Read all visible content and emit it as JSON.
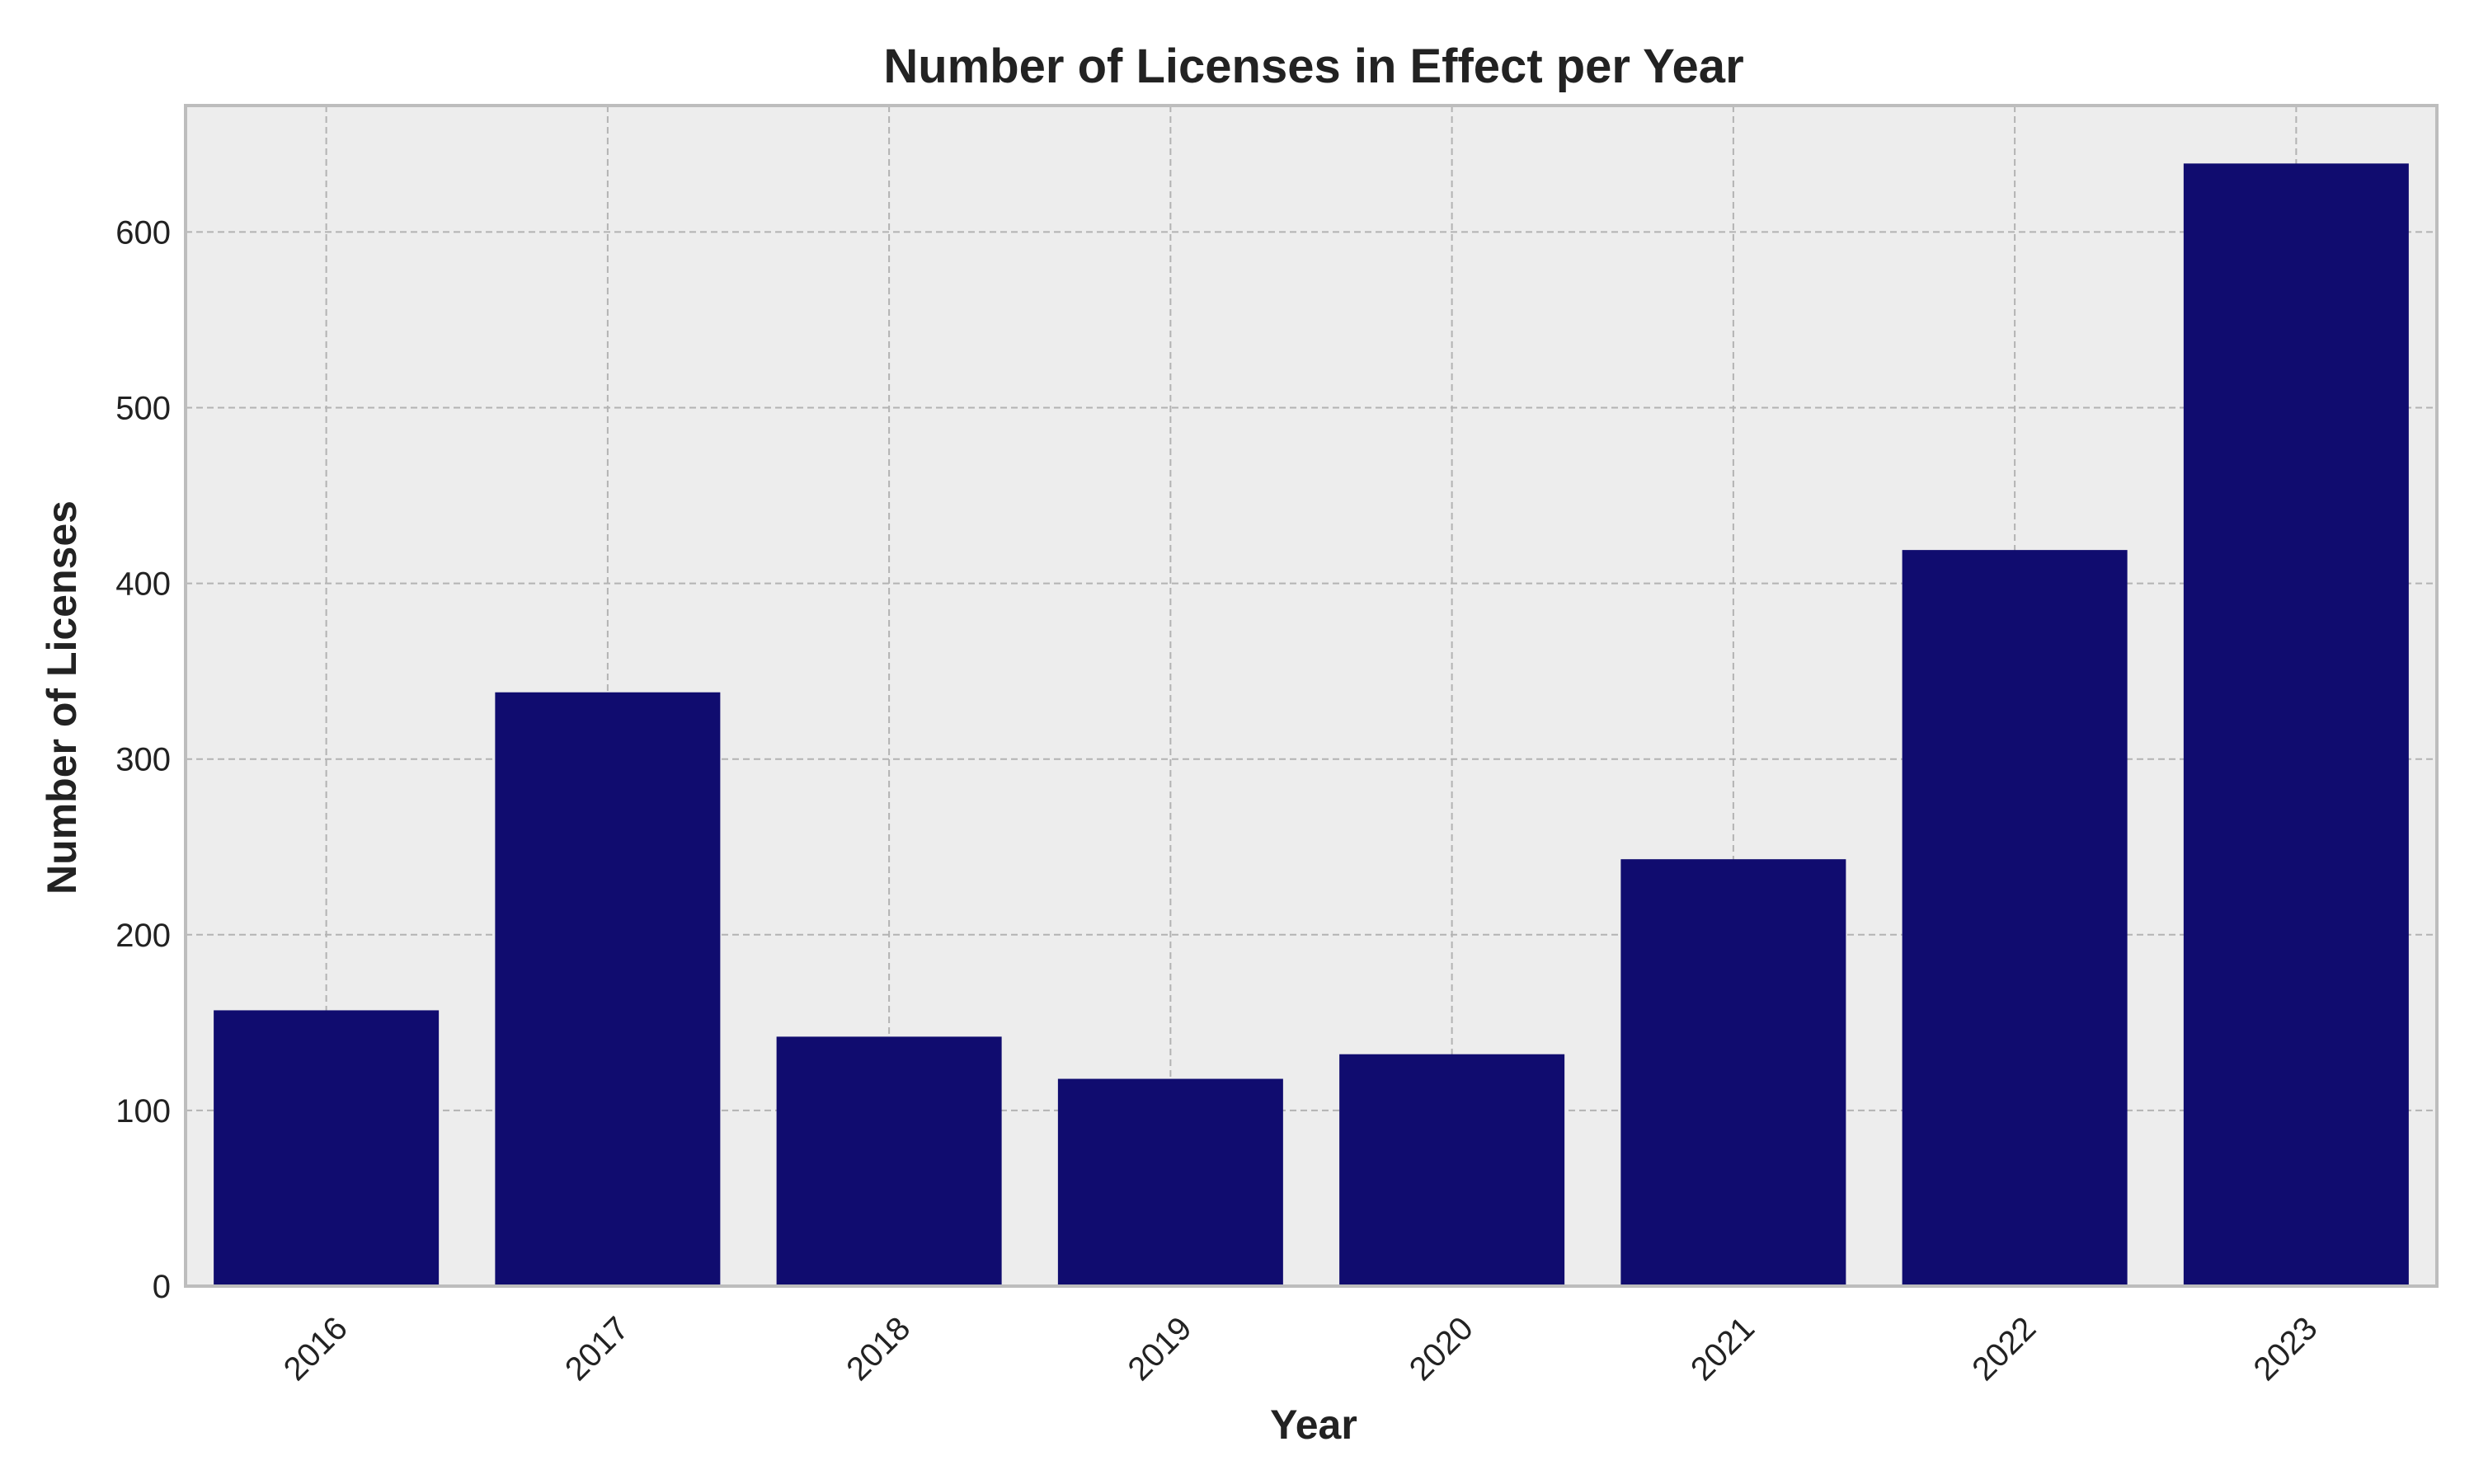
{
  "chart_data": {
    "type": "bar",
    "title": "Number of Licenses in Effect per Year",
    "xlabel": "Year",
    "ylabel": "Number of Licenses",
    "categories": [
      "2016",
      "2017",
      "2018",
      "2019",
      "2020",
      "2021",
      "2022",
      "2023"
    ],
    "values": [
      157,
      338,
      142,
      118,
      132,
      243,
      419,
      639
    ],
    "ylim": [
      0,
      672
    ],
    "yticks": [
      0,
      100,
      200,
      300,
      400,
      500,
      600
    ],
    "grid": true,
    "bar_color": "#100c6f",
    "plot_background": "#ededed",
    "x_tick_rotation_deg": 45
  }
}
